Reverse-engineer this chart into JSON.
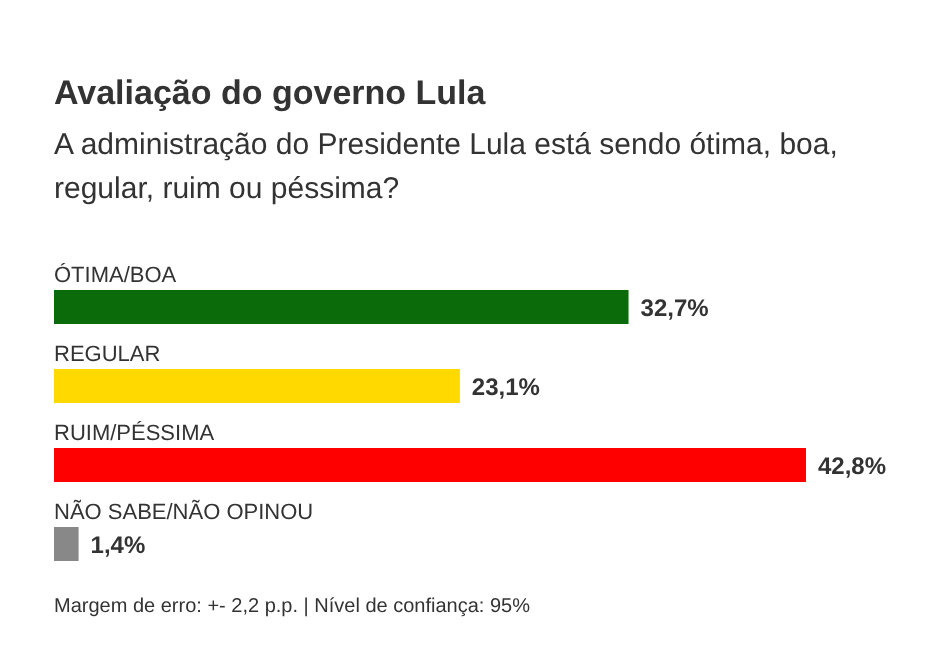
{
  "chart_data": {
    "type": "bar",
    "orientation": "horizontal",
    "title": "Avaliação do governo Lula",
    "subtitle": "A administração do Presidente Lula está sendo ótima, boa, regular, ruim ou péssima?",
    "categories": [
      "ÓTIMA/BOA",
      "REGULAR",
      "RUIM/PÉSSIMA",
      "NÃO SABE/NÃO OPINOU"
    ],
    "values": [
      32.7,
      23.1,
      42.8,
      1.4
    ],
    "colors": [
      "#0b6b0b",
      "#ffd900",
      "#ff0000",
      "#888888"
    ],
    "value_labels": [
      "32,7%",
      "23,1%",
      "42,8%",
      "1,4%"
    ],
    "data_labels": false,
    "annotations": [
      "Margem de erro: +- 2,2 p.p. | Nível de confiança: 95%"
    ]
  }
}
